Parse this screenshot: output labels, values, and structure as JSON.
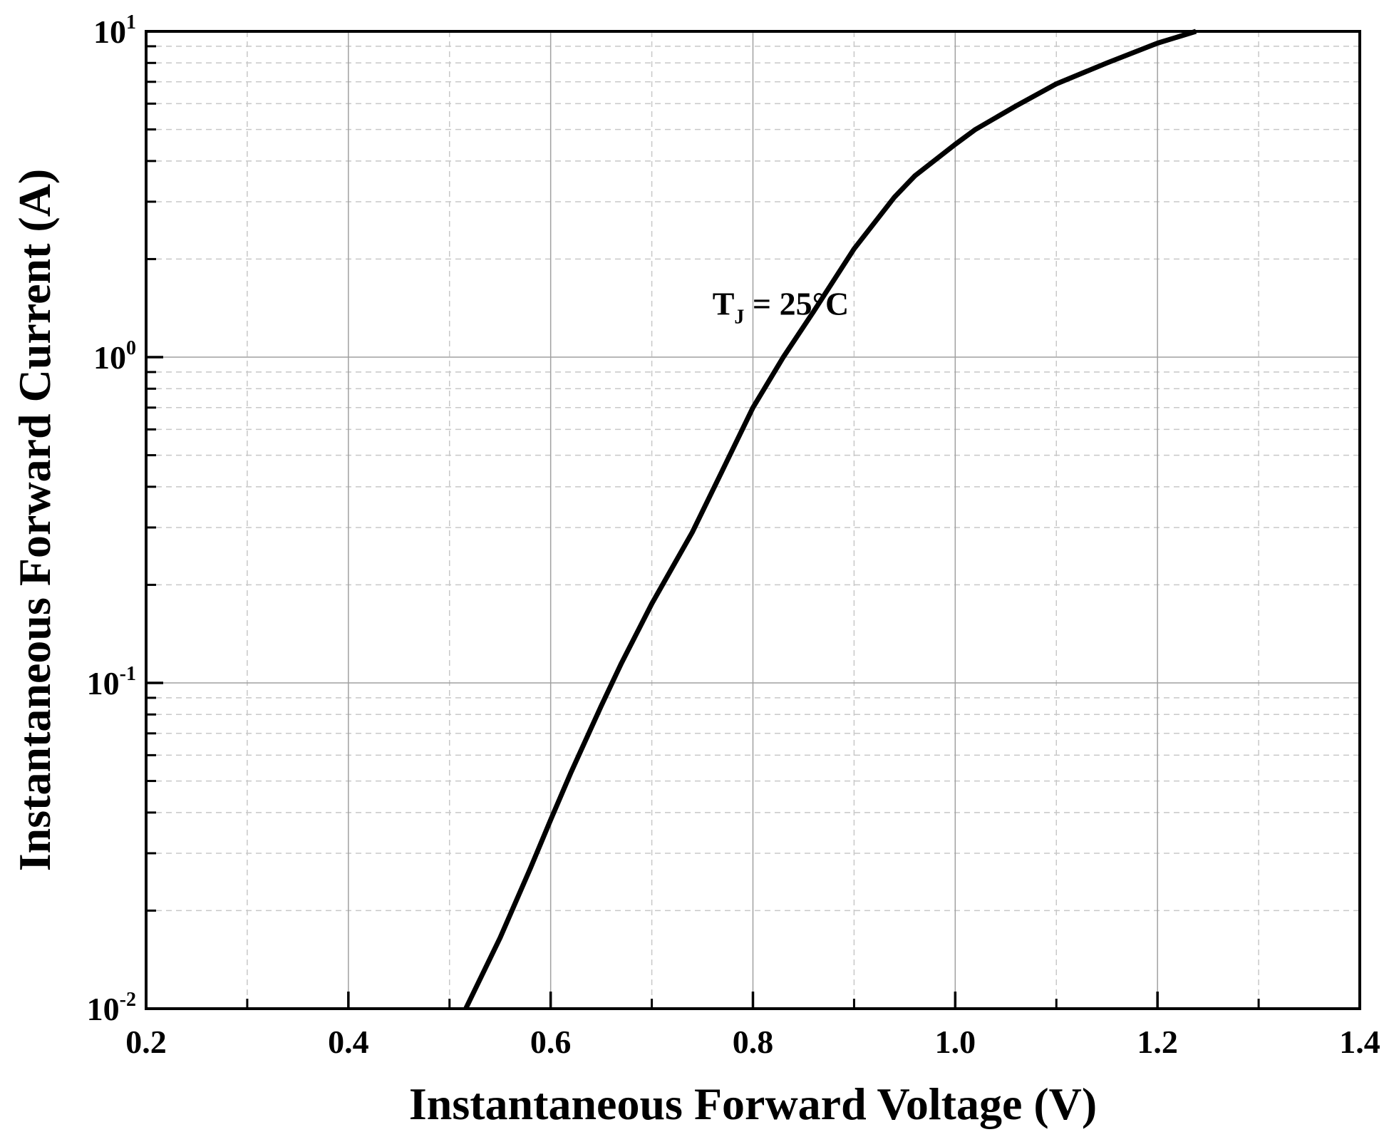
{
  "chart_data": {
    "type": "line",
    "title": "",
    "xlabel": "Instantaneous Forward Voltage (V)",
    "ylabel": "Instantaneous Forward Current (A)",
    "xscale": "linear",
    "yscale": "log",
    "xlim": [
      0.2,
      1.4
    ],
    "ylim": [
      0.01,
      10
    ],
    "grid": true,
    "x_ticks": [
      {
        "value": 0.2,
        "label": "0.2"
      },
      {
        "value": 0.4,
        "label": "0.4"
      },
      {
        "value": 0.6,
        "label": "0.6"
      },
      {
        "value": 0.8,
        "label": "0.8"
      },
      {
        "value": 1.0,
        "label": "1.0"
      },
      {
        "value": 1.2,
        "label": "1.2"
      },
      {
        "value": 1.4,
        "label": "1.4"
      }
    ],
    "y_ticks": [
      {
        "value": 0.01,
        "base": "10",
        "exp": "-2"
      },
      {
        "value": 0.1,
        "base": "10",
        "exp": "-1"
      },
      {
        "value": 1,
        "base": "10",
        "exp": "0"
      },
      {
        "value": 10,
        "base": "10",
        "exp": "1"
      }
    ],
    "annotations": [
      {
        "text": "T",
        "subscript": "J",
        "suffix": " = 25°C",
        "x": 0.76,
        "y": 1.35
      }
    ],
    "series": [
      {
        "name": "TJ = 25°C",
        "color": "#000000",
        "x": [
          0.516,
          0.55,
          0.58,
          0.6,
          0.62,
          0.65,
          0.67,
          0.7,
          0.74,
          0.77,
          0.8,
          0.83,
          0.86,
          0.9,
          0.94,
          0.96,
          1.0,
          1.02,
          1.06,
          1.1,
          1.15,
          1.2,
          1.238
        ],
        "y": [
          0.01,
          0.0165,
          0.027,
          0.038,
          0.053,
          0.085,
          0.115,
          0.175,
          0.29,
          0.45,
          0.7,
          1.0,
          1.38,
          2.15,
          3.1,
          3.6,
          4.5,
          5.0,
          5.9,
          6.9,
          8.0,
          9.2,
          10.0
        ]
      }
    ]
  }
}
